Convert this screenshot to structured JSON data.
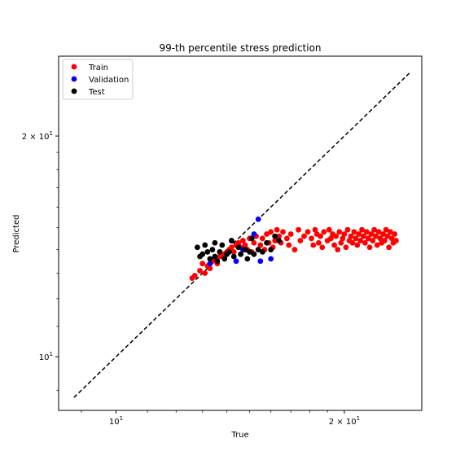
{
  "chart_data": {
    "type": "scatter",
    "title": "99-th percentile stress prediction",
    "xlabel": "True",
    "ylabel": "Predicted",
    "xscale": "log",
    "yscale": "log",
    "xlim": [
      8.4,
      25.3
    ],
    "ylim": [
      8.45,
      25.7
    ],
    "x_ticks": [
      {
        "value": 10,
        "base": "10",
        "exp": "1",
        "coef": ""
      },
      {
        "value": 20,
        "base": "10",
        "exp": "1",
        "coef": "2 × "
      }
    ],
    "y_ticks": [
      {
        "value": 10,
        "base": "10",
        "exp": "1",
        "coef": ""
      },
      {
        "value": 20,
        "base": "10",
        "exp": "1",
        "coef": "2 × "
      }
    ],
    "x_minor_ticks": [
      9,
      11,
      12,
      13,
      14,
      15,
      16,
      17,
      18,
      19
    ],
    "y_minor_ticks": [
      9,
      11,
      12,
      13,
      14,
      15,
      16,
      17,
      18,
      19
    ],
    "legend_position": "top-left",
    "grid": false,
    "reference_line": {
      "style": "dashed",
      "color": "#000000",
      "points": [
        [
          8.8,
          8.8
        ],
        [
          24.5,
          24.5
        ]
      ]
    },
    "series": [
      {
        "name": "Train",
        "color": "#ff0000",
        "points": [
          [
            12.6,
            12.8
          ],
          [
            12.7,
            12.9
          ],
          [
            12.9,
            13.1
          ],
          [
            13.0,
            13.4
          ],
          [
            13.1,
            13.0
          ],
          [
            13.2,
            13.3
          ],
          [
            13.3,
            13.2
          ],
          [
            13.4,
            13.5
          ],
          [
            13.5,
            13.6
          ],
          [
            13.6,
            13.4
          ],
          [
            13.7,
            13.7
          ],
          [
            13.8,
            13.8
          ],
          [
            13.9,
            13.6
          ],
          [
            14.0,
            13.9
          ],
          [
            14.1,
            14.0
          ],
          [
            14.2,
            14.1
          ],
          [
            14.3,
            13.9
          ],
          [
            14.4,
            14.2
          ],
          [
            14.5,
            14.3
          ],
          [
            14.6,
            14.1
          ],
          [
            14.7,
            14.4
          ],
          [
            14.8,
            14.2
          ],
          [
            14.9,
            14.0
          ],
          [
            15.0,
            14.5
          ],
          [
            15.1,
            13.9
          ],
          [
            15.2,
            14.3
          ],
          [
            15.3,
            14.6
          ],
          [
            15.5,
            14.2
          ],
          [
            15.6,
            14.5
          ],
          [
            15.7,
            14.0
          ],
          [
            15.8,
            14.7
          ],
          [
            15.9,
            14.3
          ],
          [
            16.0,
            14.8
          ],
          [
            16.1,
            14.1
          ],
          [
            16.2,
            14.4
          ],
          [
            16.3,
            14.9
          ],
          [
            16.4,
            14.6
          ],
          [
            16.5,
            14.3
          ],
          [
            16.6,
            14.8
          ],
          [
            16.8,
            14.5
          ],
          [
            16.9,
            14.2
          ],
          [
            17.0,
            14.7
          ],
          [
            17.2,
            14.0
          ],
          [
            17.4,
            14.9
          ],
          [
            17.5,
            14.4
          ],
          [
            17.7,
            14.6
          ],
          [
            17.9,
            14.8
          ],
          [
            18.1,
            14.5
          ],
          [
            18.2,
            14.2
          ],
          [
            18.3,
            14.9
          ],
          [
            18.4,
            14.7
          ],
          [
            18.5,
            14.3
          ],
          [
            18.6,
            14.6
          ],
          [
            18.7,
            14.1
          ],
          [
            18.8,
            14.8
          ],
          [
            19.0,
            14.4
          ],
          [
            19.1,
            14.9
          ],
          [
            19.2,
            14.5
          ],
          [
            19.3,
            14.7
          ],
          [
            19.4,
            14.2
          ],
          [
            19.5,
            14.6
          ],
          [
            19.6,
            14.0
          ],
          [
            19.7,
            14.8
          ],
          [
            19.8,
            14.3
          ],
          [
            19.9,
            14.5
          ],
          [
            20.0,
            14.7
          ],
          [
            20.1,
            14.1
          ],
          [
            20.2,
            14.9
          ],
          [
            20.3,
            14.4
          ],
          [
            20.4,
            14.6
          ],
          [
            20.5,
            14.3
          ],
          [
            20.6,
            14.8
          ],
          [
            20.7,
            14.5
          ],
          [
            20.8,
            14.2
          ],
          [
            20.9,
            14.7
          ],
          [
            21.0,
            14.4
          ],
          [
            21.1,
            14.9
          ],
          [
            21.2,
            14.6
          ],
          [
            21.3,
            14.3
          ],
          [
            21.4,
            14.8
          ],
          [
            21.5,
            14.5
          ],
          [
            21.6,
            14.1
          ],
          [
            21.7,
            14.7
          ],
          [
            21.8,
            14.4
          ],
          [
            21.9,
            14.9
          ],
          [
            22.0,
            14.6
          ],
          [
            22.1,
            14.2
          ],
          [
            22.2,
            14.8
          ],
          [
            22.3,
            14.5
          ],
          [
            22.4,
            14.3
          ],
          [
            22.5,
            14.7
          ],
          [
            22.6,
            14.4
          ],
          [
            22.7,
            14.9
          ],
          [
            22.8,
            14.6
          ],
          [
            22.9,
            14.1
          ],
          [
            23.0,
            14.8
          ],
          [
            23.1,
            14.5
          ],
          [
            23.2,
            14.3
          ],
          [
            23.3,
            14.7
          ],
          [
            23.4,
            14.4
          ]
        ]
      },
      {
        "name": "Validation",
        "color": "#0000ff",
        "points": [
          [
            13.3,
            13.4
          ],
          [
            14.4,
            13.5
          ],
          [
            14.2,
            14.4
          ],
          [
            14.7,
            14.0
          ],
          [
            15.2,
            14.7
          ],
          [
            15.5,
            13.5
          ],
          [
            15.4,
            15.4
          ],
          [
            16.0,
            13.6
          ]
        ]
      },
      {
        "name": "Test",
        "color": "#000000",
        "points": [
          [
            12.8,
            14.1
          ],
          [
            13.0,
            13.8
          ],
          [
            13.1,
            14.2
          ],
          [
            13.2,
            13.9
          ],
          [
            13.3,
            13.6
          ],
          [
            13.4,
            14.0
          ],
          [
            13.5,
            13.7
          ],
          [
            13.6,
            13.5
          ],
          [
            13.7,
            13.9
          ],
          [
            13.8,
            14.2
          ],
          [
            13.9,
            13.6
          ],
          [
            14.0,
            13.8
          ],
          [
            14.1,
            13.9
          ],
          [
            14.2,
            14.4
          ],
          [
            14.3,
            13.7
          ],
          [
            14.5,
            14.1
          ],
          [
            14.6,
            13.8
          ],
          [
            14.8,
            14.0
          ],
          [
            15.0,
            13.9
          ],
          [
            15.2,
            13.8
          ],
          [
            15.4,
            14.0
          ],
          [
            15.6,
            13.9
          ],
          [
            15.8,
            14.3
          ],
          [
            16.0,
            14.0
          ],
          [
            16.2,
            14.6
          ],
          [
            16.4,
            14.4
          ],
          [
            12.9,
            13.7
          ],
          [
            13.5,
            14.3
          ],
          [
            14.9,
            13.6
          ],
          [
            15.1,
            14.5
          ]
        ]
      }
    ]
  }
}
